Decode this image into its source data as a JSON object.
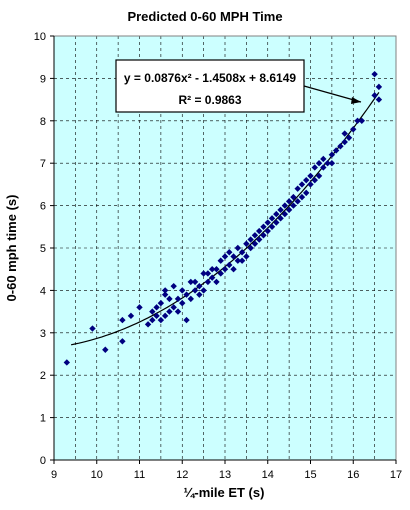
{
  "chart_data": {
    "type": "scatter",
    "title": "Predicted 0-60 MPH Time",
    "xlabel": "¼-mile ET (s)",
    "ylabel": "0-60 mph time (s)",
    "xlim": [
      9,
      17
    ],
    "ylim": [
      0,
      10
    ],
    "x_ticks": [
      9,
      10,
      11,
      12,
      13,
      14,
      15,
      16,
      17
    ],
    "y_ticks": [
      0,
      1,
      2,
      3,
      4,
      5,
      6,
      7,
      8,
      9,
      10
    ],
    "grid": "dashed, minor x every 0.5, major y every 1",
    "plot_background": "#ccffff",
    "marker_color": "#000080",
    "trendline_color": "#000000",
    "trendline": {
      "type": "polynomial",
      "a": 0.0876,
      "b": -1.4508,
      "c": 8.6149,
      "x_range": [
        9.4,
        16.6
      ],
      "equation_text": "y = 0.0876x² - 1.4508x + 8.6149",
      "r2_text": "R² = 0.9863"
    },
    "points": [
      [
        9.3,
        2.3
      ],
      [
        9.9,
        3.1
      ],
      [
        10.2,
        2.6
      ],
      [
        10.6,
        2.8
      ],
      [
        10.6,
        3.3
      ],
      [
        10.8,
        3.4
      ],
      [
        11.0,
        3.6
      ],
      [
        11.2,
        3.2
      ],
      [
        11.3,
        3.3
      ],
      [
        11.3,
        3.5
      ],
      [
        11.4,
        3.4
      ],
      [
        11.4,
        3.6
      ],
      [
        11.5,
        3.3
      ],
      [
        11.5,
        3.7
      ],
      [
        11.6,
        3.4
      ],
      [
        11.6,
        3.9
      ],
      [
        11.6,
        4.0
      ],
      [
        11.7,
        3.5
      ],
      [
        11.7,
        3.8
      ],
      [
        11.8,
        3.6
      ],
      [
        11.8,
        4.1
      ],
      [
        11.9,
        3.5
      ],
      [
        11.9,
        3.8
      ],
      [
        12.0,
        3.7
      ],
      [
        12.0,
        4.0
      ],
      [
        12.1,
        3.3
      ],
      [
        12.1,
        3.9
      ],
      [
        12.2,
        4.2
      ],
      [
        12.2,
        3.8
      ],
      [
        12.3,
        4.0
      ],
      [
        12.3,
        4.2
      ],
      [
        12.4,
        3.9
      ],
      [
        12.4,
        4.1
      ],
      [
        12.5,
        4.0
      ],
      [
        12.5,
        4.4
      ],
      [
        12.6,
        4.2
      ],
      [
        12.6,
        4.4
      ],
      [
        12.7,
        4.3
      ],
      [
        12.7,
        4.5
      ],
      [
        12.8,
        4.2
      ],
      [
        12.8,
        4.5
      ],
      [
        12.9,
        4.4
      ],
      [
        12.9,
        4.7
      ],
      [
        13.0,
        4.5
      ],
      [
        13.0,
        4.8
      ],
      [
        13.1,
        4.6
      ],
      [
        13.1,
        4.9
      ],
      [
        13.2,
        4.5
      ],
      [
        13.2,
        4.8
      ],
      [
        13.3,
        4.7
      ],
      [
        13.3,
        5.0
      ],
      [
        13.4,
        4.7
      ],
      [
        13.4,
        4.9
      ],
      [
        13.5,
        4.8
      ],
      [
        13.5,
        5.1
      ],
      [
        13.6,
        5.0
      ],
      [
        13.6,
        5.2
      ],
      [
        13.7,
        5.1
      ],
      [
        13.7,
        5.3
      ],
      [
        13.8,
        5.2
      ],
      [
        13.8,
        5.4
      ],
      [
        13.9,
        5.3
      ],
      [
        13.9,
        5.5
      ],
      [
        14.0,
        5.4
      ],
      [
        14.0,
        5.6
      ],
      [
        14.1,
        5.5
      ],
      [
        14.1,
        5.7
      ],
      [
        14.2,
        5.6
      ],
      [
        14.2,
        5.8
      ],
      [
        14.3,
        5.7
      ],
      [
        14.3,
        5.9
      ],
      [
        14.4,
        5.8
      ],
      [
        14.4,
        6.0
      ],
      [
        14.5,
        5.9
      ],
      [
        14.5,
        6.1
      ],
      [
        14.6,
        6.0
      ],
      [
        14.6,
        6.2
      ],
      [
        14.7,
        6.1
      ],
      [
        14.7,
        6.4
      ],
      [
        14.8,
        6.2
      ],
      [
        14.8,
        6.5
      ],
      [
        14.9,
        6.3
      ],
      [
        14.9,
        6.6
      ],
      [
        15.0,
        6.5
      ],
      [
        15.0,
        6.7
      ],
      [
        15.1,
        6.6
      ],
      [
        15.1,
        6.9
      ],
      [
        15.2,
        6.7
      ],
      [
        15.2,
        7.0
      ],
      [
        15.3,
        6.9
      ],
      [
        15.3,
        7.1
      ],
      [
        15.4,
        7.0
      ],
      [
        15.5,
        7.2
      ],
      [
        15.5,
        7.0
      ],
      [
        15.6,
        7.3
      ],
      [
        15.7,
        7.4
      ],
      [
        15.8,
        7.5
      ],
      [
        15.8,
        7.7
      ],
      [
        15.9,
        7.6
      ],
      [
        16.0,
        7.8
      ],
      [
        16.1,
        8.0
      ],
      [
        16.2,
        8.0
      ],
      [
        16.5,
        9.1
      ],
      [
        16.5,
        8.6
      ],
      [
        16.6,
        8.8
      ],
      [
        16.6,
        8.5
      ]
    ]
  }
}
